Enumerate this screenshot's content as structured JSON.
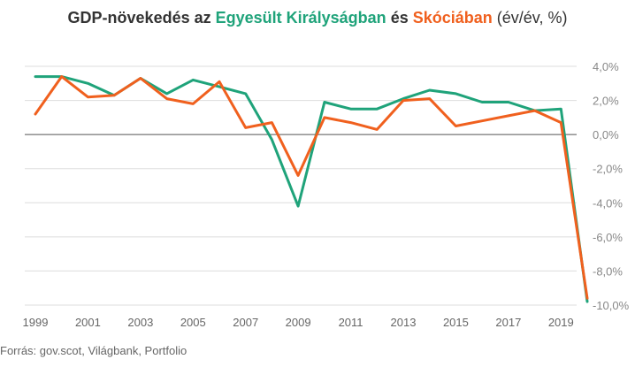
{
  "title": {
    "prefix": "GDP-növekedés az ",
    "uk_label": "Egyesült Királyságban",
    "mid": " és ",
    "scotland_label": "Skóciában",
    "unit": " (év/év, %)"
  },
  "source": "Forrás: gov.scot,  Világbank, Portfolio",
  "colors": {
    "uk": "#1fa37a",
    "scotland": "#f0601e",
    "grid": "#dddddd",
    "zero_line": "#555555",
    "tick_text": "#888888"
  },
  "chart_data": {
    "type": "line",
    "x": [
      1999,
      2000,
      2001,
      2002,
      2003,
      2004,
      2005,
      2006,
      2007,
      2008,
      2009,
      2010,
      2011,
      2012,
      2013,
      2014,
      2015,
      2016,
      2017,
      2018,
      2019,
      2020
    ],
    "series": [
      {
        "name": "Egyesült Királyságban",
        "color": "#1fa37a",
        "values": [
          3.4,
          3.4,
          3.0,
          2.3,
          3.3,
          2.4,
          3.2,
          2.8,
          2.4,
          -0.3,
          -4.2,
          1.9,
          1.5,
          1.5,
          2.1,
          2.6,
          2.4,
          1.9,
          1.9,
          1.4,
          1.5,
          -9.8
        ]
      },
      {
        "name": "Skóciában",
        "color": "#f0601e",
        "values": [
          1.2,
          3.4,
          2.2,
          2.3,
          3.3,
          2.1,
          1.8,
          3.1,
          0.4,
          0.7,
          -2.4,
          1.0,
          0.7,
          0.3,
          2.0,
          2.1,
          0.5,
          0.8,
          1.1,
          1.4,
          0.7,
          -9.6
        ]
      }
    ],
    "x_tick_labels": [
      "1999",
      "2001",
      "2003",
      "2005",
      "2007",
      "2009",
      "2011",
      "2013",
      "2015",
      "2017",
      "2019"
    ],
    "y_tick_values": [
      4,
      2,
      0,
      -2,
      -4,
      -6,
      -8,
      -10
    ],
    "y_tick_labels": [
      "4,0%",
      "2,0%",
      "0,0%",
      "-2,0%",
      "-4,0%",
      "-6,0%",
      "-8,0%",
      "-10,0%"
    ],
    "ylim": [
      -10,
      4
    ],
    "y_axis_side": "right",
    "grid": true
  }
}
